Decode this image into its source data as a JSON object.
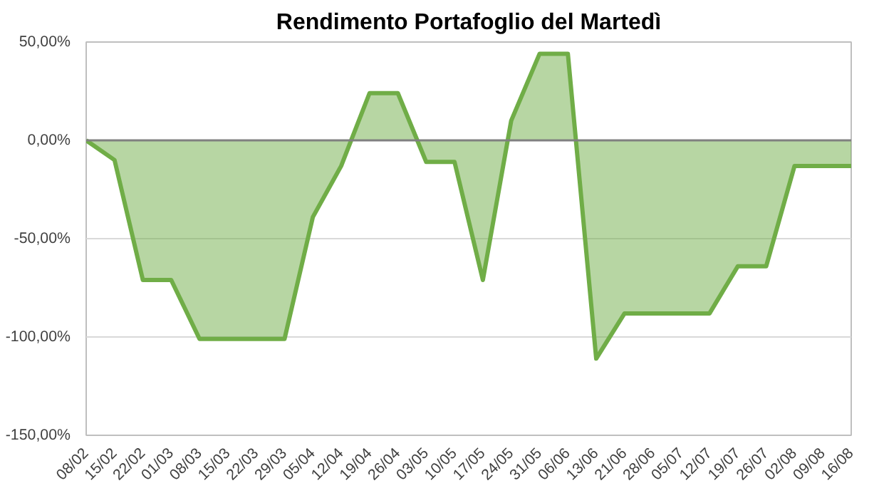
{
  "chart_data": {
    "type": "area",
    "title": "Rendimento Portafoglio del Martedì",
    "categories": [
      "08/02",
      "15/02",
      "22/02",
      "01/03",
      "08/03",
      "15/03",
      "22/03",
      "29/03",
      "05/04",
      "12/04",
      "19/04",
      "26/04",
      "03/05",
      "10/05",
      "17/05",
      "24/05",
      "31/05",
      "06/06",
      "13/06",
      "21/06",
      "28/06",
      "05/07",
      "12/07",
      "19/07",
      "26/07",
      "02/08",
      "09/08",
      "16/08"
    ],
    "series": [
      {
        "color": "#70ad47",
        "values": [
          0,
          -10,
          -71,
          -71,
          -101,
          -101,
          -101,
          -101,
          -39,
          -13,
          24,
          24,
          -11,
          -11,
          -71,
          10,
          44,
          44,
          -111,
          -88,
          -88,
          -88,
          -88,
          -64,
          -64,
          -13,
          -13,
          -13
        ]
      }
    ],
    "ylim": [
      -150,
      50
    ],
    "yticks": [
      {
        "value": -150,
        "label": "-150,00%"
      },
      {
        "value": -100,
        "label": "-100,00%"
      },
      {
        "value": -50,
        "label": "-50,00%"
      },
      {
        "value": 0,
        "label": "0,00%"
      },
      {
        "value": 50,
        "label": "50,00%"
      }
    ],
    "grid": "y"
  }
}
